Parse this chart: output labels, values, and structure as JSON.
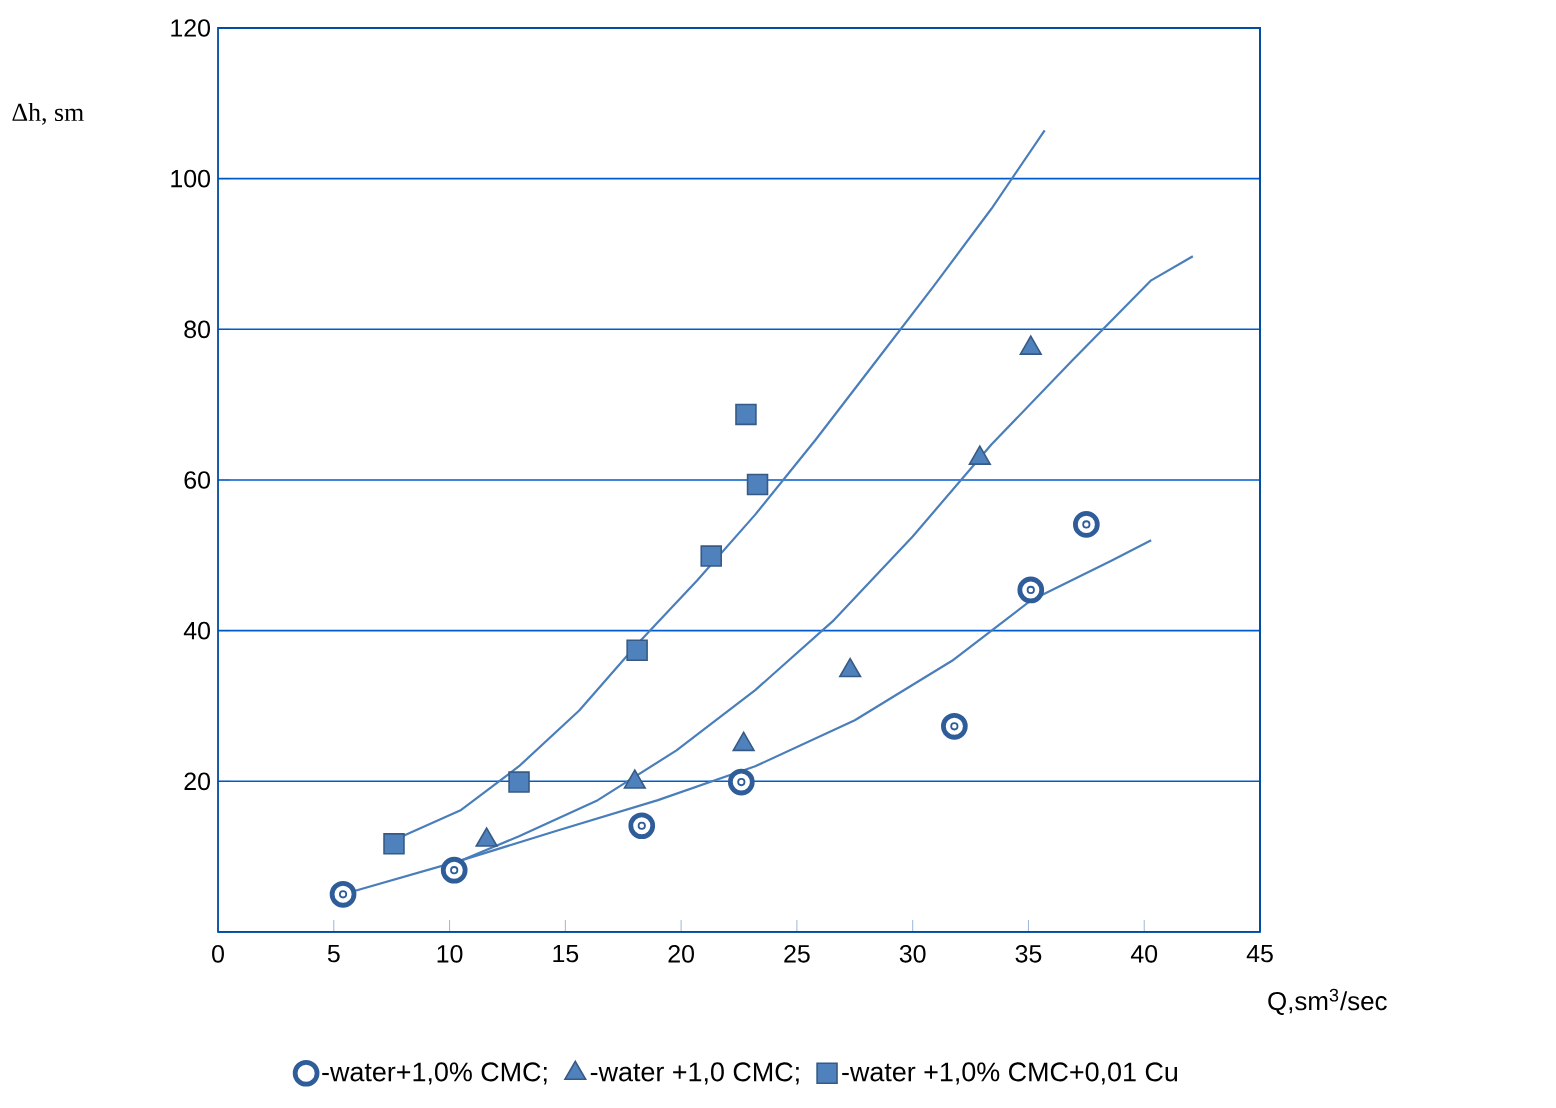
{
  "chart_data": {
    "type": "scatter",
    "xlabel": "Q,sm$^{3}$/sec",
    "ylabel": "Δh, sm",
    "xlim": [
      0,
      45
    ],
    "ylim": [
      0,
      120
    ],
    "xticks": [
      0,
      5,
      10,
      15,
      20,
      25,
      30,
      35,
      40,
      45
    ],
    "yticks": [
      {
        "value": 0,
        "label": null
      },
      20,
      40,
      60,
      80,
      100,
      120
    ],
    "grid": "y",
    "legend": "bottom",
    "series": [
      {
        "name": "-water+1,0% CMC;",
        "color": "#2f5d9a",
        "marker": "circle",
        "x": [
          5.4,
          10.2,
          18.3,
          22.6,
          31.8,
          35.1,
          37.5
        ],
        "values": [
          5.0,
          8.2,
          14.1,
          19.9,
          27.3,
          45.4,
          54.1
        ]
      },
      {
        "name": "-water +1,0 CMC;",
        "color": "#4f81bd",
        "marker": "triangle",
        "x": [
          11.6,
          18.0,
          22.7,
          27.3,
          32.9,
          35.1
        ],
        "values": [
          12.2,
          19.9,
          24.9,
          34.7,
          62.9,
          77.5
        ]
      },
      {
        "name": "-water +1,0% CMC+0,01 Cu",
        "color": "#4f81bd",
        "marker": "square",
        "x": [
          7.6,
          13.0,
          18.1,
          21.3,
          22.8,
          23.3
        ],
        "values": [
          11.7,
          19.9,
          37.4,
          49.9,
          68.7,
          59.4
        ]
      },
      {
        "type": "line",
        "color": "#4a7ebb",
        "marker": "none",
        "x": [
          7.6,
          10.5,
          13.0,
          15.6,
          18.1,
          20.7,
          23.2,
          25.8,
          28.3,
          30.9,
          33.4,
          35.7
        ],
        "values": [
          12.2,
          16.2,
          22.0,
          29.4,
          38.2,
          46.7,
          55.4,
          65.3,
          75.3,
          85.7,
          96.0,
          106.4
        ]
      },
      {
        "type": "line",
        "color": "#4a7ebb",
        "marker": "none",
        "x": [
          10.5,
          13.0,
          16.4,
          19.8,
          23.2,
          26.6,
          30.0,
          33.4,
          36.9,
          40.3,
          42.1
        ],
        "values": [
          9.5,
          12.7,
          17.5,
          24.1,
          32.1,
          41.4,
          52.5,
          64.7,
          75.9,
          86.5,
          89.7
        ]
      },
      {
        "type": "line",
        "color": "#4a7ebb",
        "marker": "none",
        "x": [
          5.4,
          10.5,
          14.7,
          19.0,
          23.2,
          27.5,
          31.7,
          35.1,
          38.6,
          40.3
        ],
        "values": [
          5.0,
          9.5,
          13.5,
          17.5,
          22.0,
          28.1,
          36.0,
          44.0,
          49.3,
          52.0
        ]
      }
    ]
  }
}
